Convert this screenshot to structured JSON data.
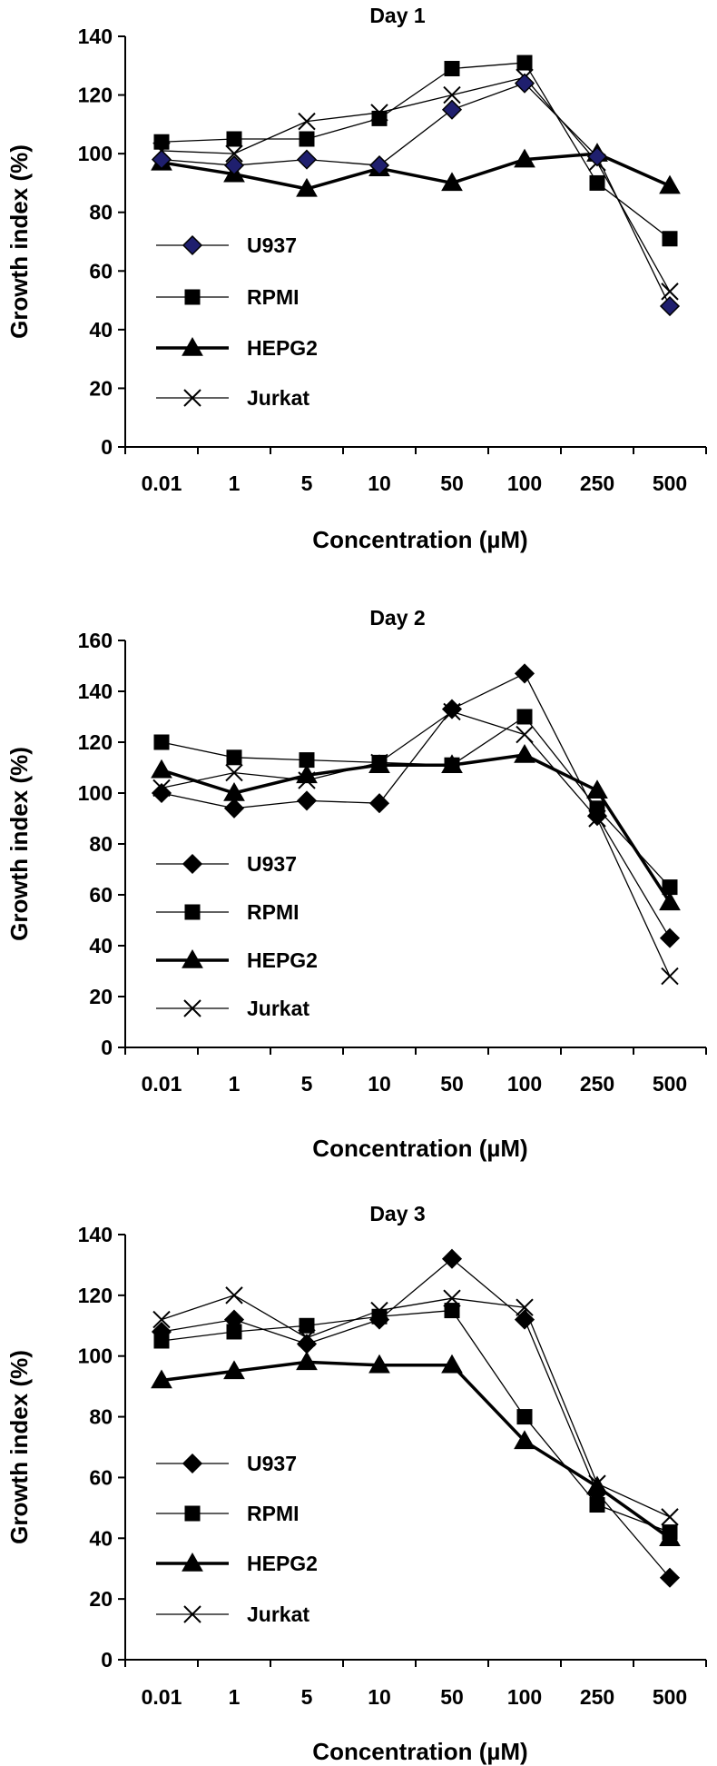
{
  "chart_data": [
    {
      "type": "line",
      "title": "Day 1",
      "xlabel": "Concentration (µM)",
      "ylabel": "Growth index (%)",
      "categories": [
        "0.01",
        "1",
        "5",
        "10",
        "50",
        "100",
        "250",
        "500"
      ],
      "ylim": [
        0,
        140
      ],
      "yticks": [
        0,
        20,
        40,
        60,
        80,
        100,
        120,
        140
      ],
      "grid": false,
      "legend_position": "left",
      "series": [
        {
          "name": "U937",
          "marker": "diamond",
          "marker_fill": "#1f1f6e",
          "line_weight": "thin",
          "values": [
            98,
            96,
            98,
            96,
            115,
            124,
            99,
            48
          ]
        },
        {
          "name": "RPMI",
          "marker": "square",
          "marker_fill": "#000000",
          "line_weight": "thin",
          "values": [
            104,
            105,
            105,
            112,
            129,
            131,
            90,
            71
          ]
        },
        {
          "name": "HEPG2",
          "marker": "triangle",
          "marker_fill": "#000000",
          "line_weight": "thick",
          "values": [
            97,
            93,
            88,
            95,
            90,
            98,
            100,
            89
          ]
        },
        {
          "name": "Jurkat",
          "marker": "x",
          "marker_fill": "none",
          "line_weight": "thin",
          "values": [
            101,
            100,
            111,
            114,
            120,
            126,
            97,
            53
          ]
        }
      ]
    },
    {
      "type": "line",
      "title": "Day 2",
      "xlabel": "Concentration (µM)",
      "ylabel": "Growth index (%)",
      "categories": [
        "0.01",
        "1",
        "5",
        "10",
        "50",
        "100",
        "250",
        "500"
      ],
      "ylim": [
        0,
        160
      ],
      "yticks": [
        0,
        20,
        40,
        60,
        80,
        100,
        120,
        140,
        160
      ],
      "grid": false,
      "legend_position": "left",
      "series": [
        {
          "name": "U937",
          "marker": "diamond",
          "marker_fill": "#000000",
          "line_weight": "thin",
          "values": [
            100,
            94,
            97,
            96,
            133,
            147,
            91,
            43
          ]
        },
        {
          "name": "RPMI",
          "marker": "square",
          "marker_fill": "#000000",
          "line_weight": "thin",
          "values": [
            120,
            114,
            113,
            112,
            111,
            130,
            94,
            63
          ]
        },
        {
          "name": "HEPG2",
          "marker": "triangle",
          "marker_fill": "#000000",
          "line_weight": "thick",
          "values": [
            109,
            100,
            107,
            111,
            111,
            115,
            101,
            57
          ]
        },
        {
          "name": "Jurkat",
          "marker": "x",
          "marker_fill": "none",
          "line_weight": "thin",
          "values": [
            102,
            108,
            105,
            112,
            132,
            123,
            90,
            28
          ]
        }
      ]
    },
    {
      "type": "line",
      "title": "Day 3",
      "xlabel": "Concentration (µM)",
      "ylabel": "Growth index (%)",
      "categories": [
        "0.01",
        "1",
        "5",
        "10",
        "50",
        "100",
        "250",
        "500"
      ],
      "ylim": [
        0,
        140
      ],
      "yticks": [
        0,
        20,
        40,
        60,
        80,
        100,
        120,
        140
      ],
      "grid": false,
      "legend_position": "left",
      "series": [
        {
          "name": "U937",
          "marker": "diamond",
          "marker_fill": "#000000",
          "line_weight": "thin",
          "values": [
            108,
            112,
            104,
            112,
            132,
            112,
            55,
            27
          ]
        },
        {
          "name": "RPMI",
          "marker": "square",
          "marker_fill": "#000000",
          "line_weight": "thin",
          "values": [
            105,
            108,
            110,
            113,
            115,
            80,
            51,
            42
          ]
        },
        {
          "name": "HEPG2",
          "marker": "triangle",
          "marker_fill": "#000000",
          "line_weight": "thick",
          "values": [
            92,
            95,
            98,
            97,
            97,
            72,
            57,
            40
          ]
        },
        {
          "name": "Jurkat",
          "marker": "x",
          "marker_fill": "none",
          "line_weight": "thin",
          "values": [
            112,
            120,
            106,
            115,
            119,
            116,
            58,
            47
          ]
        }
      ]
    }
  ]
}
